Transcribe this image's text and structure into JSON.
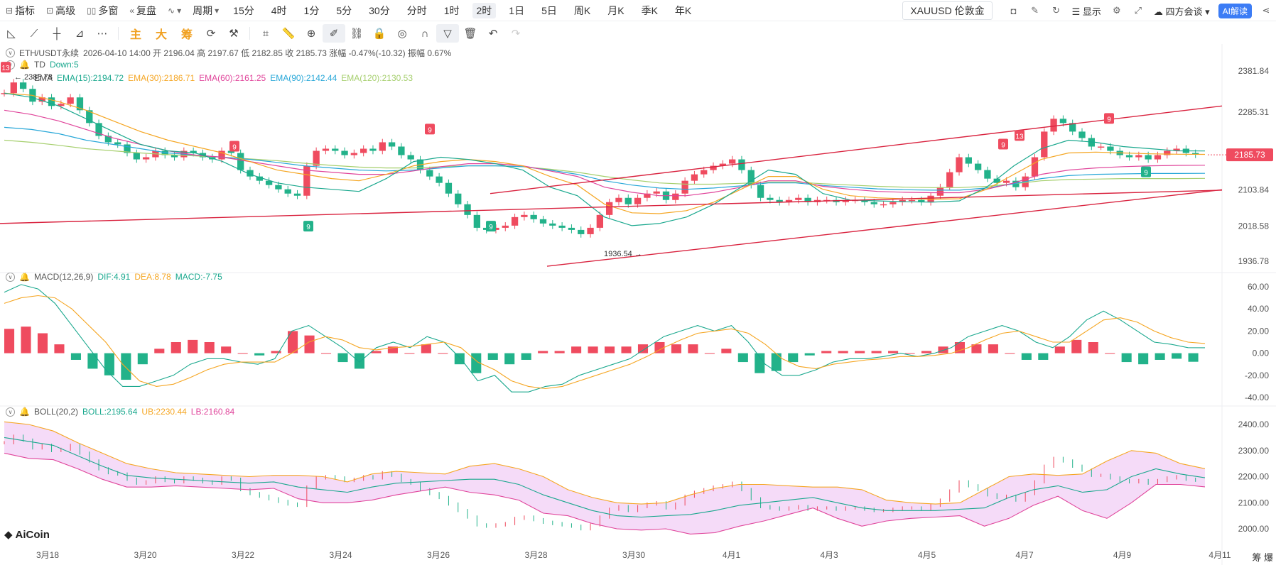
{
  "toolbar": {
    "indicator": "指标",
    "advanced": "高级",
    "multi_window": "多窗",
    "restore": "复盘",
    "wave": "",
    "period": "周期",
    "periods": [
      "15分",
      "4时",
      "1分",
      "5分",
      "30分",
      "分时",
      "1时",
      "2时",
      "1日",
      "5日",
      "周K",
      "月K",
      "季K",
      "年K"
    ],
    "active_period": "2时",
    "symbol_pill": "XAUUSD 伦敦金",
    "display": "显示",
    "meeting": "四方会谈",
    "ai": "AI解读"
  },
  "drawbar": {
    "main": "主",
    "big": "大",
    "chips": "筹"
  },
  "legend": {
    "pair": "ETH/USDT永续",
    "ohlc": "2026-04-10 14:00  开 2196.04  高 2197.67  低 2182.85  收 2185.73  涨幅 -0.47%(-10.32)  振幅 0.67%",
    "td": "TD",
    "td_val": "Down:5",
    "ema_name": "EMA",
    "ema15": "EMA(15):2194.72",
    "ema30": "EMA(30):2186.71",
    "ema60": "EMA(60):2161.25",
    "ema90": "EMA(90):2142.44",
    "ema120": "EMA(120):2130.53",
    "macd_name": "MACD(12,26,9)",
    "dif": "DIF:4.91",
    "dea": "DEA:8.78",
    "macd": "MACD:-7.75",
    "boll_name": "BOLL(20,2)",
    "boll": "BOLL:2195.64",
    "ub": "UB:2230.44",
    "lb": "LB:2160.84"
  },
  "colors": {
    "up": "#ef4b5f",
    "down": "#22b28a",
    "ema15": "#1aa88e",
    "ema30": "#f5a623",
    "ema60": "#e0459b",
    "ema90": "#27a7d8",
    "ema120": "#a6cf6e",
    "channel": "#d9233f",
    "boll_mid": "#1aa88e",
    "boll_ub": "#f5a623",
    "boll_lb": "#e0459b",
    "boll_fill": "#f2d2f6"
  },
  "watermark": "AiCoin",
  "corner": "筹 爆",
  "chart_data": {
    "type": "candlestick",
    "symbol": "ETH/USDT永续",
    "interval": "2h",
    "price_axis_ticks": [
      "2381.84",
      "2285.31",
      "2185.73",
      "2103.84",
      "2018.58",
      "1936.78"
    ],
    "price_ylim": [
      1936.78,
      2381.84
    ],
    "last_price": "2185.73",
    "high_marker": "2385.78",
    "low_marker": "1936.54",
    "x_ticks": [
      "3月18",
      "3月20",
      "3月22",
      "3月24",
      "3月26",
      "3月28",
      "3月30",
      "4月1",
      "4月3",
      "4月5",
      "4月7",
      "4月9",
      "4月11"
    ],
    "close_series": [
      2330,
      2355,
      2340,
      2310,
      2320,
      2300,
      2305,
      2320,
      2290,
      2260,
      2230,
      2215,
      2210,
      2190,
      2175,
      2180,
      2195,
      2185,
      2180,
      2195,
      2190,
      2180,
      2175,
      2195,
      2190,
      2150,
      2135,
      2125,
      2115,
      2105,
      2095,
      2090,
      2160,
      2195,
      2200,
      2195,
      2185,
      2190,
      2200,
      2195,
      2215,
      2205,
      2185,
      2175,
      2150,
      2135,
      2120,
      2095,
      2070,
      2045,
      2015,
      2010,
      2015,
      2020,
      2040,
      2045,
      2035,
      2025,
      2020,
      2015,
      2010,
      2000,
      2015,
      2045,
      2075,
      2085,
      2070,
      2085,
      2095,
      2100,
      2080,
      2095,
      2125,
      2140,
      2150,
      2160,
      2165,
      2175,
      2150,
      2115,
      2085,
      2080,
      2075,
      2080,
      2085,
      2075,
      2080,
      2080,
      2075,
      2080,
      2080,
      2075,
      2070,
      2070,
      2075,
      2080,
      2080,
      2075,
      2090,
      2110,
      2145,
      2180,
      2165,
      2150,
      2130,
      2120,
      2125,
      2110,
      2135,
      2180,
      2240,
      2270,
      2260,
      2240,
      2225,
      2205,
      2205,
      2195,
      2185,
      2180,
      2185,
      2175,
      2185,
      2195,
      2200,
      2190,
      2186
    ],
    "ema15": [
      2330,
      2320,
      2300,
      2270,
      2240,
      2210,
      2195,
      2190,
      2170,
      2140,
      2120,
      2110,
      2105,
      2100,
      2130,
      2170,
      2180,
      2175,
      2165,
      2150,
      2110,
      2090,
      2040,
      2020,
      2025,
      2040,
      2070,
      2110,
      2150,
      2140,
      2095,
      2080,
      2078,
      2076,
      2075,
      2078,
      2110,
      2160,
      2200,
      2220,
      2215,
      2205,
      2200,
      2195,
      2194.72
    ],
    "ema30": [
      2330,
      2325,
      2310,
      2290,
      2265,
      2240,
      2220,
      2205,
      2190,
      2170,
      2150,
      2140,
      2130,
      2125,
      2140,
      2160,
      2170,
      2175,
      2170,
      2160,
      2135,
      2115,
      2070,
      2050,
      2048,
      2055,
      2075,
      2105,
      2135,
      2135,
      2105,
      2090,
      2085,
      2083,
      2082,
      2083,
      2105,
      2140,
      2175,
      2190,
      2192,
      2190,
      2188,
      2187,
      2186.71
    ],
    "ema60": [
      2290,
      2280,
      2265,
      2245,
      2225,
      2210,
      2195,
      2185,
      2180,
      2170,
      2160,
      2150,
      2145,
      2140,
      2140,
      2148,
      2158,
      2165,
      2165,
      2160,
      2148,
      2135,
      2110,
      2098,
      2090,
      2090,
      2098,
      2110,
      2125,
      2125,
      2112,
      2105,
      2100,
      2098,
      2097,
      2097,
      2105,
      2120,
      2140,
      2150,
      2155,
      2158,
      2160,
      2161,
      2161.25
    ],
    "ema90": [
      2250,
      2245,
      2235,
      2220,
      2210,
      2200,
      2190,
      2185,
      2180,
      2175,
      2168,
      2160,
      2155,
      2150,
      2148,
      2150,
      2155,
      2160,
      2160,
      2158,
      2150,
      2140,
      2125,
      2115,
      2108,
      2105,
      2108,
      2113,
      2120,
      2120,
      2114,
      2110,
      2106,
      2104,
      2103,
      2103,
      2108,
      2118,
      2130,
      2137,
      2140,
      2141,
      2142,
      2142,
      2142.44
    ],
    "ema120": [
      2220,
      2215,
      2208,
      2200,
      2195,
      2190,
      2186,
      2183,
      2180,
      2176,
      2172,
      2166,
      2161,
      2157,
      2155,
      2155,
      2158,
      2160,
      2160,
      2158,
      2152,
      2145,
      2135,
      2127,
      2120,
      2117,
      2117,
      2119,
      2122,
      2122,
      2118,
      2115,
      2112,
      2110,
      2109,
      2109,
      2112,
      2118,
      2125,
      2128,
      2129,
      2130,
      2130,
      2130,
      2130.53
    ],
    "td_markers": [
      {
        "label": "13",
        "type": "up"
      },
      {
        "label": "9",
        "type": "up"
      },
      {
        "label": "9",
        "type": "down"
      },
      {
        "label": "9",
        "type": "up"
      },
      {
        "label": "9",
        "type": "down"
      },
      {
        "label": "9",
        "type": "up"
      },
      {
        "label": "13",
        "type": "up"
      },
      {
        "label": "9",
        "type": "up"
      },
      {
        "label": "9",
        "type": "down"
      }
    ],
    "macd": {
      "ylim": [
        -40,
        60
      ],
      "ticks": [
        "60.00",
        "40.00",
        "20.00",
        "0.00",
        "-20.00",
        "-40.00"
      ],
      "dif": [
        55,
        62,
        58,
        45,
        25,
        5,
        -15,
        -30,
        -30,
        -25,
        -20,
        -10,
        -5,
        -5,
        -8,
        -10,
        -5,
        20,
        25,
        15,
        5,
        -8,
        5,
        10,
        5,
        15,
        10,
        -5,
        -25,
        -20,
        -35,
        -35,
        -30,
        -28,
        -20,
        -15,
        -10,
        -5,
        5,
        15,
        20,
        25,
        20,
        25,
        10,
        -10,
        -20,
        -20,
        -15,
        -8,
        -5,
        -5,
        -3,
        0,
        -3,
        0,
        5,
        15,
        20,
        25,
        20,
        10,
        5,
        15,
        30,
        38,
        30,
        20,
        10,
        8,
        5,
        4.91
      ],
      "dea": [
        45,
        50,
        52,
        50,
        40,
        25,
        10,
        -10,
        -25,
        -30,
        -28,
        -22,
        -15,
        -10,
        -8,
        -8,
        -8,
        0,
        10,
        15,
        12,
        5,
        3,
        5,
        6,
        8,
        10,
        5,
        -8,
        -15,
        -25,
        -30,
        -32,
        -30,
        -25,
        -20,
        -15,
        -10,
        -3,
        5,
        12,
        18,
        20,
        22,
        18,
        8,
        -5,
        -12,
        -14,
        -10,
        -8,
        -6,
        -5,
        -3,
        -3,
        -2,
        0,
        5,
        12,
        18,
        20,
        15,
        10,
        10,
        20,
        30,
        32,
        28,
        20,
        14,
        10,
        8.78
      ],
      "hist": [
        22,
        24,
        18,
        8,
        -6,
        -14,
        -20,
        -24,
        -10,
        4,
        10,
        12,
        10,
        6,
        0,
        -2,
        2,
        20,
        16,
        0,
        -8,
        -14,
        2,
        6,
        0,
        8,
        0,
        -10,
        -18,
        -6,
        -10,
        -6,
        2,
        2,
        6,
        6,
        6,
        6,
        8,
        10,
        8,
        8,
        0,
        4,
        -8,
        -18,
        -16,
        -8,
        -2,
        2,
        2,
        2,
        2,
        2,
        0,
        2,
        6,
        10,
        8,
        8,
        0,
        -6,
        -6,
        6,
        12,
        10,
        0,
        -8,
        -10,
        -6,
        -5,
        -7.75
      ]
    },
    "boll": {
      "ylim": [
        2000,
        2400
      ],
      "ticks": [
        "2400.00",
        "2300.00",
        "2200.00",
        "2100.00",
        "2000.00"
      ],
      "mid": [
        2350,
        2335,
        2320,
        2280,
        2240,
        2205,
        2195,
        2190,
        2185,
        2180,
        2175,
        2180,
        2160,
        2150,
        2140,
        2160,
        2175,
        2180,
        2185,
        2190,
        2190,
        2170,
        2130,
        2100,
        2070,
        2050,
        2045,
        2050,
        2055,
        2070,
        2090,
        2100,
        2110,
        2120,
        2100,
        2080,
        2070,
        2070,
        2070,
        2075,
        2080,
        2120,
        2150,
        2165,
        2140,
        2150,
        2200,
        2230,
        2210,
        2195.64
      ],
      "ub": [
        2410,
        2400,
        2375,
        2330,
        2290,
        2250,
        2230,
        2215,
        2210,
        2205,
        2200,
        2205,
        2205,
        2200,
        2180,
        2210,
        2220,
        2215,
        2210,
        2240,
        2250,
        2230,
        2200,
        2150,
        2120,
        2100,
        2095,
        2100,
        2130,
        2155,
        2170,
        2170,
        2165,
        2160,
        2160,
        2150,
        2110,
        2100,
        2095,
        2100,
        2150,
        2200,
        2210,
        2205,
        2210,
        2260,
        2300,
        2290,
        2250,
        2230.44
      ],
      "lb": [
        2290,
        2270,
        2265,
        2230,
        2190,
        2160,
        2160,
        2165,
        2160,
        2155,
        2150,
        2155,
        2115,
        2100,
        2100,
        2110,
        2130,
        2145,
        2160,
        2140,
        2130,
        2110,
        2060,
        2050,
        2020,
        2000,
        1995,
        2000,
        1980,
        1985,
        2010,
        2030,
        2055,
        2080,
        2040,
        2010,
        2030,
        2040,
        2045,
        2050,
        2010,
        2040,
        2090,
        2125,
        2070,
        2040,
        2100,
        2170,
        2170,
        2160.84
      ]
    }
  }
}
